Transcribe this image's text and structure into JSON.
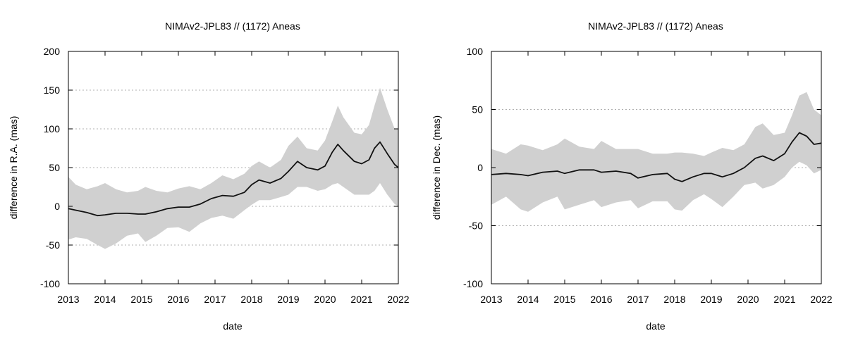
{
  "chart_data": [
    {
      "type": "area",
      "title": "NIMAv2-JPL83 // (1172) Aneas",
      "xlabel": "date",
      "ylabel": "difference in R.A. (mas)",
      "xlim": [
        2013,
        2022
      ],
      "ylim": [
        -100,
        200
      ],
      "x_ticks": [
        2013,
        2014,
        2015,
        2016,
        2017,
        2018,
        2019,
        2020,
        2021,
        2022
      ],
      "y_ticks": [
        -100,
        -50,
        0,
        50,
        100,
        150,
        200
      ],
      "grid": true,
      "colors": {
        "band": "#d0d0d0",
        "line": "#111111",
        "grid": "#b0b0b0"
      },
      "series": [
        {
          "x": [
            2013.0,
            2013.2,
            2013.5,
            2013.8,
            2014.0,
            2014.3,
            2014.6,
            2014.9,
            2015.1,
            2015.4,
            2015.7,
            2016.0,
            2016.3,
            2016.6,
            2016.9,
            2017.2,
            2017.5,
            2017.8,
            2018.0,
            2018.2,
            2018.5,
            2018.8,
            2019.0,
            2019.25,
            2019.5,
            2019.8,
            2020.0,
            2020.2,
            2020.35,
            2020.5,
            2020.8,
            2021.0,
            2021.2,
            2021.35,
            2021.5,
            2021.7,
            2021.9,
            2022.0
          ],
          "y": [
            -3,
            -5,
            -8,
            -12,
            -11,
            -9,
            -9,
            -10,
            -10,
            -7,
            -3,
            -1,
            -1,
            3,
            10,
            14,
            13,
            18,
            28,
            34,
            30,
            36,
            45,
            58,
            50,
            47,
            52,
            70,
            80,
            72,
            58,
            55,
            60,
            75,
            83,
            68,
            54,
            50
          ],
          "upper": [
            38,
            28,
            22,
            26,
            30,
            22,
            18,
            20,
            25,
            20,
            18,
            23,
            26,
            22,
            30,
            40,
            35,
            42,
            52,
            58,
            50,
            60,
            78,
            90,
            75,
            72,
            85,
            110,
            130,
            115,
            95,
            93,
            105,
            130,
            153,
            125,
            100,
            100
          ],
          "lower": [
            -43,
            -40,
            -42,
            -50,
            -55,
            -48,
            -38,
            -35,
            -46,
            -38,
            -28,
            -27,
            -33,
            -22,
            -15,
            -12,
            -16,
            -5,
            2,
            8,
            8,
            12,
            15,
            25,
            25,
            20,
            22,
            28,
            30,
            25,
            15,
            15,
            15,
            20,
            30,
            15,
            3,
            0
          ]
        }
      ]
    },
    {
      "type": "area",
      "title": "NIMAv2-JPL83 // (1172) Aneas",
      "xlabel": "date",
      "ylabel": "difference in Dec. (mas)",
      "xlim": [
        2013,
        2022
      ],
      "ylim": [
        -100,
        100
      ],
      "x_ticks": [
        2013,
        2014,
        2015,
        2016,
        2017,
        2018,
        2019,
        2020,
        2021,
        2022
      ],
      "y_ticks": [
        -100,
        -50,
        0,
        50,
        100
      ],
      "grid": true,
      "colors": {
        "band": "#d0d0d0",
        "line": "#111111",
        "grid": "#b0b0b0"
      },
      "series": [
        {
          "x": [
            2013.0,
            2013.4,
            2013.8,
            2014.0,
            2014.4,
            2014.8,
            2015.0,
            2015.4,
            2015.8,
            2016.0,
            2016.4,
            2016.8,
            2017.0,
            2017.4,
            2017.8,
            2018.0,
            2018.2,
            2018.5,
            2018.8,
            2019.0,
            2019.3,
            2019.6,
            2019.9,
            2020.2,
            2020.4,
            2020.7,
            2021.0,
            2021.2,
            2021.4,
            2021.6,
            2021.8,
            2022.0
          ],
          "y": [
            -6,
            -5,
            -6,
            -7,
            -4,
            -3,
            -5,
            -2,
            -2,
            -4,
            -3,
            -5,
            -9,
            -6,
            -5,
            -10,
            -12,
            -8,
            -5,
            -5,
            -8,
            -5,
            0,
            8,
            10,
            6,
            12,
            22,
            30,
            27,
            20,
            21
          ],
          "upper": [
            16,
            12,
            20,
            19,
            15,
            20,
            25,
            18,
            16,
            23,
            16,
            16,
            16,
            12,
            12,
            13,
            13,
            12,
            10,
            13,
            17,
            15,
            20,
            35,
            38,
            28,
            30,
            45,
            62,
            65,
            50,
            45
          ],
          "lower": [
            -32,
            -25,
            -36,
            -38,
            -30,
            -25,
            -36,
            -32,
            -28,
            -34,
            -30,
            -28,
            -35,
            -29,
            -29,
            -36,
            -37,
            -28,
            -23,
            -27,
            -34,
            -25,
            -15,
            -13,
            -18,
            -15,
            -8,
            0,
            5,
            2,
            -5,
            -2
          ]
        }
      ]
    }
  ]
}
